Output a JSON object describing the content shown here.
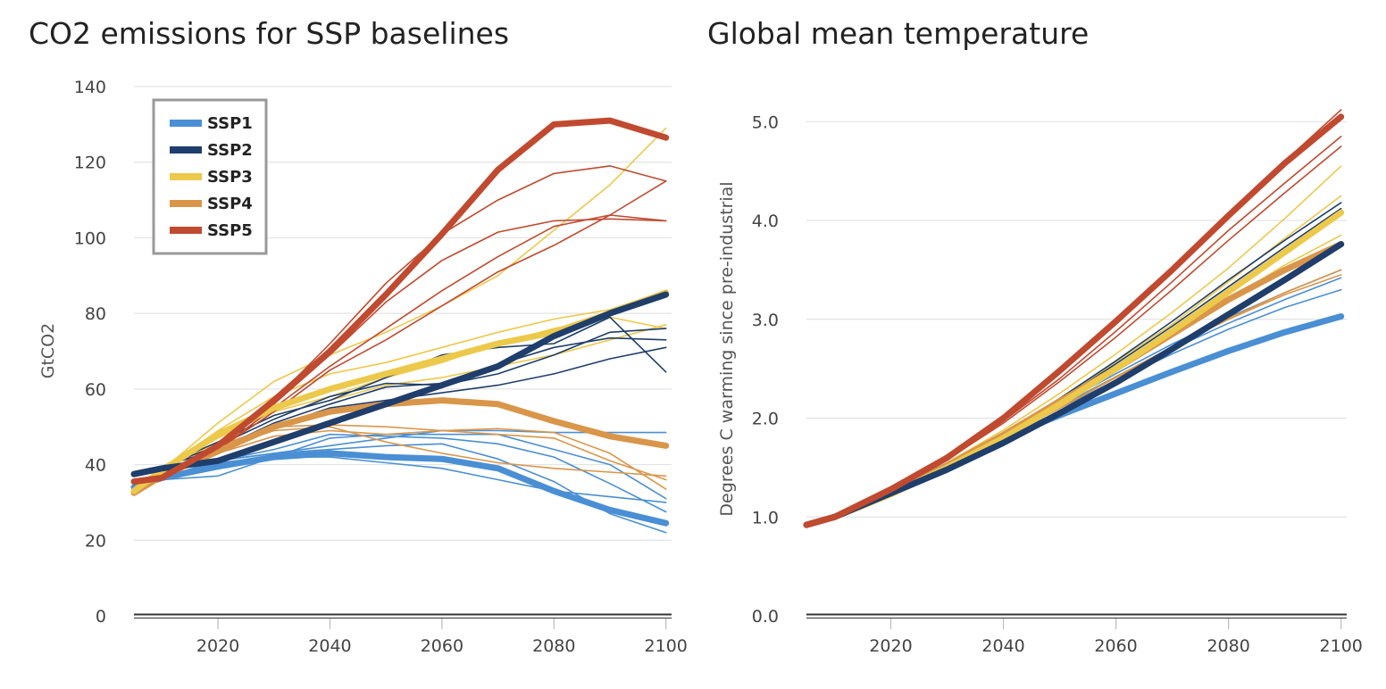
{
  "colors": {
    "SSP1": "#4a8fd4",
    "SSP2": "#1f3e6b",
    "SSP3": "#ecc94b",
    "SSP4": "#d9964a",
    "SSP5": "#c04a30"
  },
  "chart_data": [
    {
      "type": "line",
      "title": "CO2 emissions for SSP baselines",
      "xlabel": "",
      "ylabel": "GtCO2",
      "xlim": [
        2005,
        2101
      ],
      "ylim": [
        0,
        140
      ],
      "yticks": [
        0,
        20,
        40,
        60,
        80,
        100,
        120,
        140
      ],
      "xticks": [
        2020,
        2040,
        2060,
        2080,
        2100
      ],
      "grid": true,
      "legend": {
        "placement": "top-left",
        "entries": [
          "SSP1",
          "SSP2",
          "SSP3",
          "SSP4",
          "SSP5"
        ]
      },
      "x": [
        2005,
        2010,
        2020,
        2030,
        2040,
        2050,
        2060,
        2070,
        2080,
        2090,
        2100
      ],
      "series": [
        {
          "group": "SSP1",
          "marker": true,
          "values": [
            34,
            36.5,
            39.5,
            42,
            43,
            42,
            41.5,
            39,
            33,
            28,
            24.5
          ]
        },
        {
          "group": "SSP1",
          "values": [
            34,
            36,
            37,
            42,
            47,
            48,
            48,
            48,
            44,
            40,
            31
          ]
        },
        {
          "group": "SSP1",
          "values": [
            34,
            36.5,
            41,
            43,
            45,
            47,
            49,
            49,
            48.5,
            48.5,
            48.5
          ]
        },
        {
          "group": "SSP1",
          "values": [
            34,
            36.5,
            40.5,
            42,
            42,
            40.5,
            39,
            36,
            33,
            31.5,
            30
          ]
        },
        {
          "group": "SSP1",
          "values": [
            34,
            36.5,
            41,
            44,
            48,
            47.5,
            47,
            45.5,
            42,
            35,
            27.5
          ]
        },
        {
          "group": "SSP1",
          "values": [
            34,
            36.5,
            41,
            43,
            44,
            45,
            45.5,
            41.5,
            35.5,
            27,
            22
          ]
        },
        {
          "group": "SSP2",
          "marker": true,
          "values": [
            37.5,
            39,
            41,
            46,
            51,
            56,
            61,
            66,
            74,
            80,
            85
          ]
        },
        {
          "group": "SSP2",
          "values": [
            37.5,
            39.5,
            45,
            52,
            58,
            61.5,
            61,
            64,
            69,
            75,
            76
          ]
        },
        {
          "group": "SSP2",
          "values": [
            37.5,
            39.5,
            44,
            51,
            56,
            60.5,
            61.5,
            66.5,
            71,
            73.5,
            73
          ]
        },
        {
          "group": "SSP2",
          "values": [
            37.5,
            39.5,
            44,
            50,
            55,
            57,
            59,
            61,
            64,
            68,
            71
          ]
        },
        {
          "group": "SSP2",
          "values": [
            37.5,
            39.5,
            46,
            53,
            57,
            63,
            69,
            71,
            72,
            79,
            64.5
          ]
        },
        {
          "group": "SSP3",
          "marker": true,
          "values": [
            33,
            38.5,
            48,
            55,
            60,
            64,
            68,
            72,
            75,
            80,
            85.5
          ]
        },
        {
          "group": "SSP3",
          "values": [
            33,
            38.5,
            51,
            62,
            69,
            75,
            82,
            90,
            102,
            114,
            129
          ]
        },
        {
          "group": "SSP3",
          "values": [
            33,
            38.5,
            49,
            58,
            64,
            67,
            71,
            75,
            78.5,
            81,
            86
          ]
        },
        {
          "group": "SSP3",
          "values": [
            33,
            38.5,
            46,
            53,
            57,
            61,
            63,
            66,
            69,
            73,
            77
          ]
        },
        {
          "group": "SSP3",
          "values": [
            33,
            38.5,
            47,
            54,
            58,
            63,
            67,
            72,
            76,
            79,
            76
          ]
        },
        {
          "group": "SSP4",
          "marker": true,
          "values": [
            32.5,
            37,
            43.5,
            50,
            54,
            56,
            57,
            56,
            51.5,
            47.5,
            45
          ]
        },
        {
          "group": "SSP4",
          "values": [
            32.5,
            37,
            45,
            50,
            50.5,
            50,
            49,
            48,
            47,
            41,
            36
          ]
        },
        {
          "group": "SSP4",
          "values": [
            32.5,
            37,
            44,
            49,
            50,
            46,
            43,
            40.5,
            39,
            38,
            37
          ]
        },
        {
          "group": "SSP4",
          "values": [
            32.5,
            37,
            43,
            47.5,
            49,
            48,
            49,
            49.5,
            48.5,
            43,
            33.5
          ]
        },
        {
          "group": "SSP5",
          "marker": true,
          "values": [
            35.5,
            36.5,
            45,
            57,
            70,
            85,
            101,
            118,
            130,
            131,
            126.5
          ]
        },
        {
          "group": "SSP5",
          "values": [
            35.5,
            36.5,
            45,
            57,
            72,
            88,
            101,
            110,
            117,
            119,
            115
          ]
        },
        {
          "group": "SSP5",
          "values": [
            35.5,
            36.5,
            44,
            55,
            66,
            76,
            86,
            95,
            103,
            106,
            104.5
          ]
        },
        {
          "group": "SSP5",
          "values": [
            35.5,
            36.5,
            44,
            54,
            65,
            73,
            82,
            91,
            98,
            106,
            115
          ]
        },
        {
          "group": "SSP5",
          "values": [
            35.5,
            36.5,
            45,
            56,
            69,
            83,
            94,
            101.5,
            104.5,
            105,
            104.5
          ]
        }
      ]
    },
    {
      "type": "line",
      "title": "Global mean temperature",
      "xlabel": "",
      "ylabel": "Degrees C warming since pre-industrial",
      "xlim": [
        2005,
        2101
      ],
      "ylim": [
        0,
        5.4
      ],
      "yticks": [
        0.0,
        1.0,
        2.0,
        3.0,
        4.0,
        5.0
      ],
      "ytick_labels": [
        "0.0",
        "1.0",
        "2.0",
        "3.0",
        "4.0",
        "5.0"
      ],
      "xticks": [
        2020,
        2040,
        2060,
        2080,
        2100
      ],
      "grid": true,
      "x": [
        2005,
        2010,
        2020,
        2030,
        2040,
        2050,
        2060,
        2070,
        2080,
        2090,
        2100
      ],
      "series": [
        {
          "group": "SSP1",
          "marker": true,
          "values": [
            0.92,
            1.0,
            1.25,
            1.52,
            1.8,
            2.03,
            2.25,
            2.47,
            2.68,
            2.87,
            3.03
          ]
        },
        {
          "group": "SSP1",
          "values": [
            0.92,
            1.0,
            1.25,
            1.53,
            1.82,
            2.1,
            2.38,
            2.65,
            2.9,
            3.12,
            3.3
          ]
        },
        {
          "group": "SSP1",
          "values": [
            0.92,
            1.0,
            1.25,
            1.53,
            1.83,
            2.12,
            2.42,
            2.7,
            2.96,
            3.2,
            3.42
          ]
        },
        {
          "group": "SSP1",
          "values": [
            0.92,
            1.0,
            1.26,
            1.54,
            1.84,
            2.14,
            2.45,
            2.75,
            3.02,
            3.27,
            3.5
          ]
        },
        {
          "group": "SSP2",
          "marker": true,
          "values": [
            0.92,
            1.0,
            1.24,
            1.48,
            1.75,
            2.05,
            2.36,
            2.7,
            3.05,
            3.4,
            3.76
          ]
        },
        {
          "group": "SSP2",
          "values": [
            0.92,
            1.0,
            1.25,
            1.52,
            1.85,
            2.2,
            2.58,
            2.98,
            3.4,
            3.8,
            4.18
          ]
        },
        {
          "group": "SSP2",
          "values": [
            0.92,
            1.0,
            1.25,
            1.52,
            1.84,
            2.18,
            2.55,
            2.93,
            3.33,
            3.73,
            4.12
          ]
        },
        {
          "group": "SSP3",
          "marker": true,
          "values": [
            0.92,
            1.0,
            1.23,
            1.5,
            1.8,
            2.14,
            2.5,
            2.88,
            3.28,
            3.68,
            4.08
          ]
        },
        {
          "group": "SSP3",
          "values": [
            0.92,
            1.0,
            1.25,
            1.55,
            1.88,
            2.25,
            2.65,
            3.07,
            3.52,
            4.02,
            4.55
          ]
        },
        {
          "group": "SSP3",
          "values": [
            0.92,
            1.0,
            1.25,
            1.52,
            1.84,
            2.2,
            2.57,
            2.95,
            3.38,
            3.82,
            4.25
          ]
        },
        {
          "group": "SSP3",
          "values": [
            0.92,
            1.0,
            1.24,
            1.5,
            1.8,
            2.13,
            2.48,
            2.83,
            3.2,
            3.55,
            3.85
          ]
        },
        {
          "group": "SSP4",
          "marker": true,
          "values": [
            0.92,
            1.0,
            1.24,
            1.52,
            1.83,
            2.17,
            2.5,
            2.85,
            3.2,
            3.5,
            3.76
          ]
        },
        {
          "group": "SSP4",
          "values": [
            0.92,
            1.0,
            1.24,
            1.51,
            1.8,
            2.1,
            2.42,
            2.72,
            3.0,
            3.25,
            3.45
          ]
        },
        {
          "group": "SSP4",
          "values": [
            0.92,
            1.0,
            1.24,
            1.5,
            1.8,
            2.1,
            2.41,
            2.71,
            3.01,
            3.27,
            3.5
          ]
        },
        {
          "group": "SSP5",
          "marker": true,
          "values": [
            0.92,
            1.0,
            1.28,
            1.6,
            2.0,
            2.48,
            2.98,
            3.5,
            4.05,
            4.58,
            5.05
          ]
        },
        {
          "group": "SSP5",
          "values": [
            0.92,
            1.0,
            1.28,
            1.6,
            2.0,
            2.45,
            2.95,
            3.48,
            4.05,
            4.6,
            5.12
          ]
        },
        {
          "group": "SSP5",
          "values": [
            0.92,
            1.0,
            1.27,
            1.58,
            1.97,
            2.4,
            2.88,
            3.38,
            3.9,
            4.38,
            4.85
          ]
        },
        {
          "group": "SSP5",
          "values": [
            0.92,
            1.0,
            1.27,
            1.58,
            1.95,
            2.37,
            2.82,
            3.3,
            3.8,
            4.28,
            4.75
          ]
        }
      ]
    }
  ]
}
